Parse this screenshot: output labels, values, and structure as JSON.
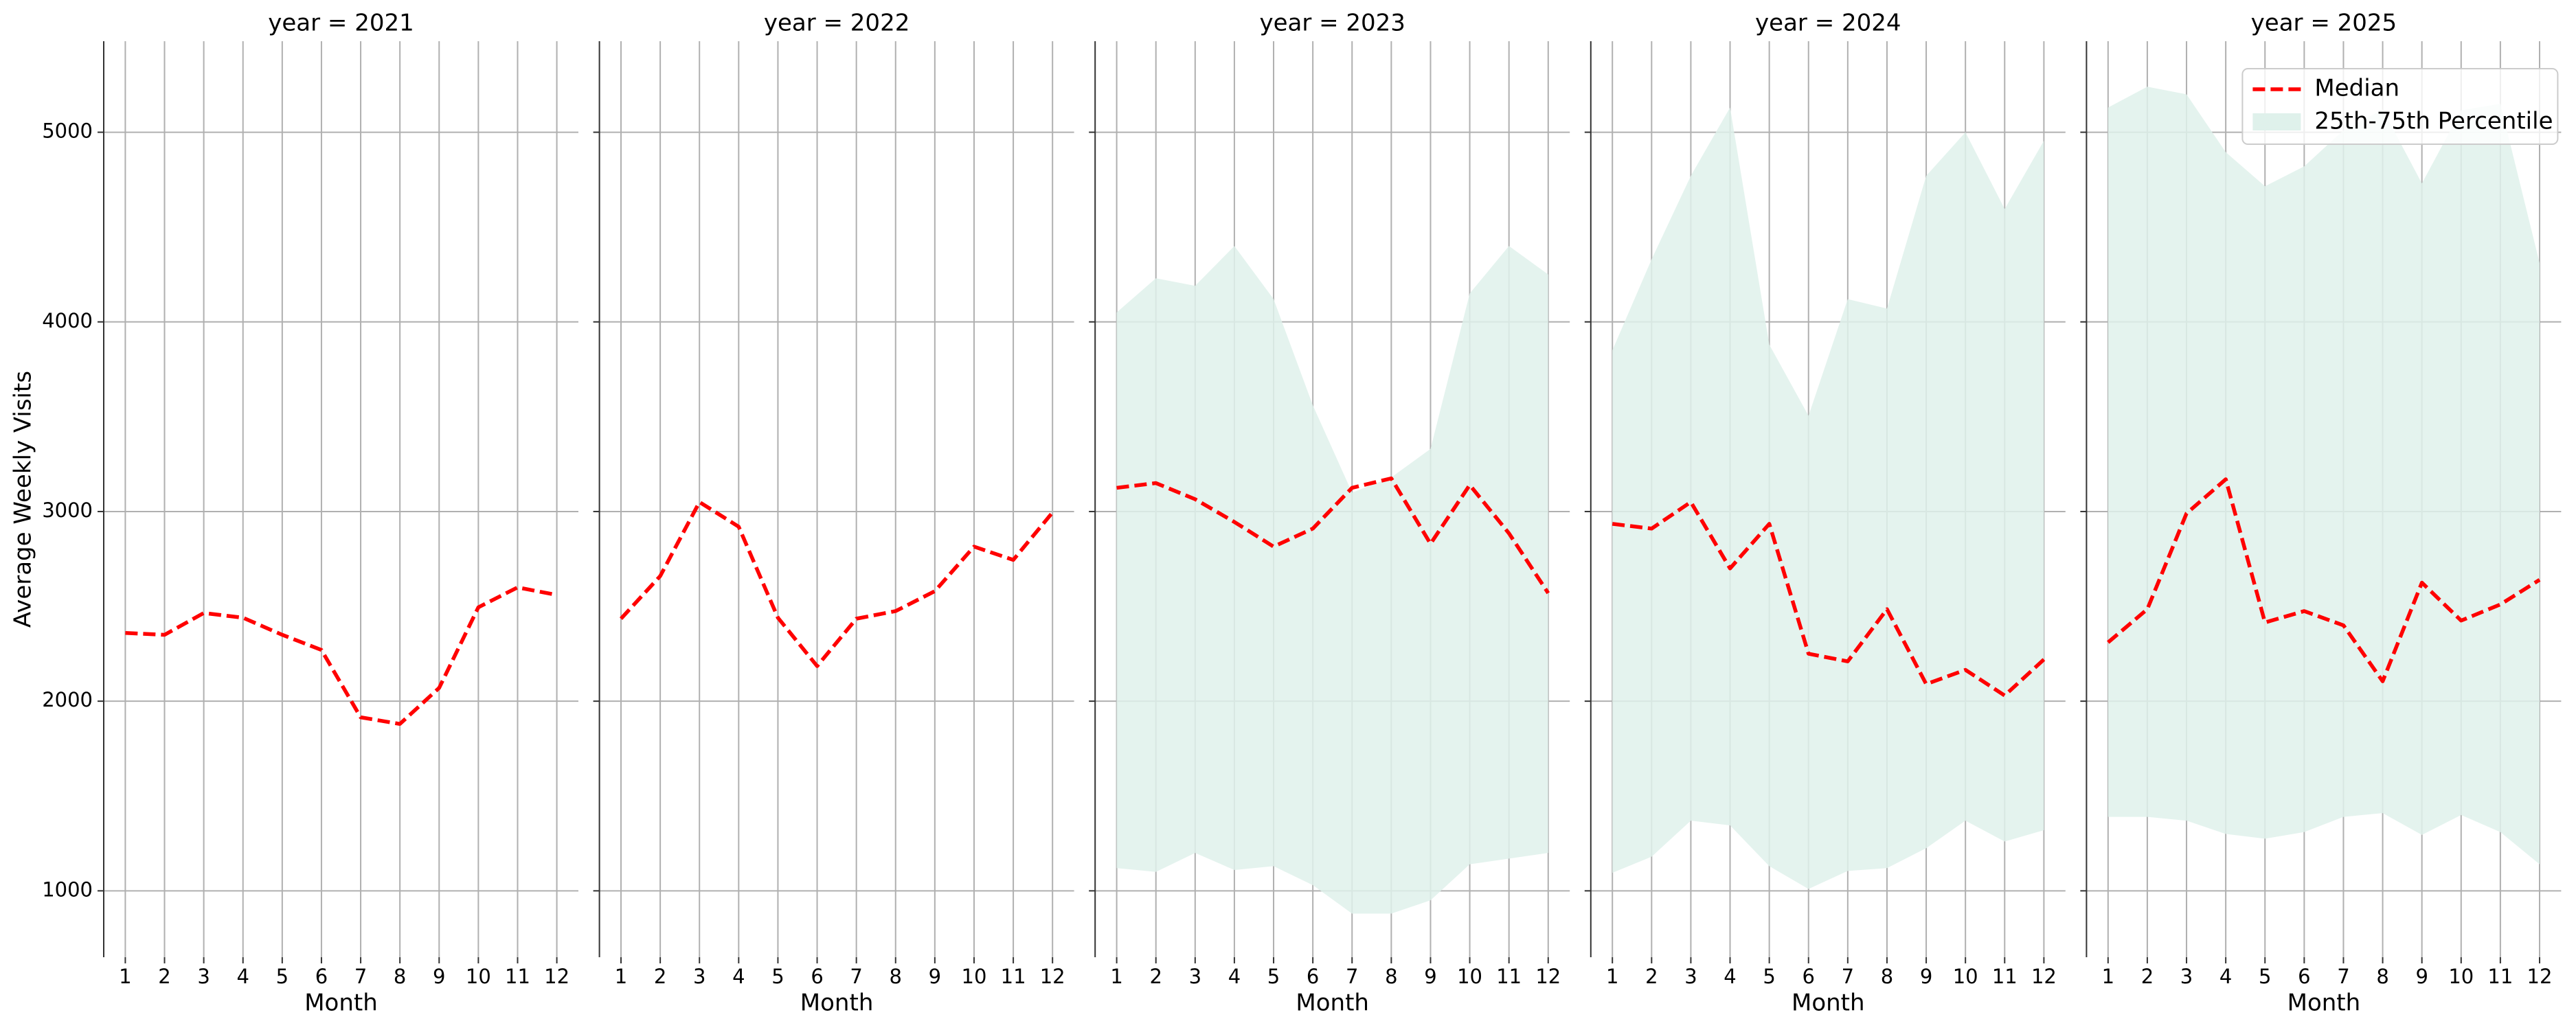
{
  "chart_data": {
    "type": "line",
    "xlabel": "Month",
    "ylabel": "Average Weekly Visits",
    "x": [
      1,
      2,
      3,
      4,
      5,
      6,
      7,
      8,
      9,
      10,
      11,
      12
    ],
    "xlim": [
      0.45,
      12.55
    ],
    "xticks": [
      1,
      2,
      3,
      4,
      5,
      6,
      7,
      8,
      9,
      10,
      11,
      12
    ],
    "ylim": [
      650,
      5480
    ],
    "yticks": [
      1000,
      2000,
      3000,
      4000,
      5000
    ],
    "grid": true,
    "legend": "upper right",
    "series": [
      {
        "name": "Median",
        "color": "#ff0000",
        "dash": true
      },
      {
        "name": "25th-75th Percentile",
        "color": "#dff1eb"
      }
    ],
    "panels": [
      {
        "title": "year = 2021",
        "median": [
          2360,
          2350,
          2465,
          2440,
          2350,
          2270,
          1915,
          1880,
          2070,
          2495,
          2600,
          2560
        ]
      },
      {
        "title": "year = 2022",
        "median": [
          2435,
          2660,
          3050,
          2920,
          2440,
          2185,
          2435,
          2475,
          2580,
          2815,
          2745,
          2995
        ]
      },
      {
        "title": "year = 2023",
        "median": [
          3125,
          3150,
          3065,
          2945,
          2815,
          2910,
          3125,
          3175,
          2830,
          3140,
          2885,
          2570
        ],
        "q25": [
          1120,
          1100,
          1200,
          1110,
          1130,
          1030,
          880,
          880,
          950,
          1140,
          1170,
          1200
        ],
        "q75": [
          4050,
          4230,
          4190,
          4400,
          4120,
          3560,
          3100,
          3180,
          3330,
          4150,
          4400,
          4250
        ]
      },
      {
        "title": "year = 2024",
        "median": [
          2935,
          2910,
          3050,
          2700,
          2935,
          2250,
          2210,
          2485,
          2090,
          2165,
          2030,
          2220
        ],
        "q25": [
          1095,
          1180,
          1370,
          1345,
          1130,
          1010,
          1105,
          1120,
          1225,
          1370,
          1260,
          1320
        ],
        "q75": [
          3850,
          4330,
          4770,
          5130,
          3880,
          3505,
          4120,
          4070,
          4770,
          5000,
          4595,
          4955
        ]
      },
      {
        "title": "year = 2025",
        "median": [
          2310,
          2485,
          2990,
          3170,
          2415,
          2475,
          2400,
          2105,
          2625,
          2425,
          2510,
          2640
        ],
        "q25": [
          1390,
          1390,
          1370,
          1300,
          1275,
          1310,
          1390,
          1410,
          1295,
          1400,
          1310,
          1140
        ],
        "q75": [
          5130,
          5240,
          5200,
          4895,
          4715,
          4820,
          5010,
          5120,
          4730,
          5115,
          5150,
          4310
        ]
      }
    ]
  }
}
